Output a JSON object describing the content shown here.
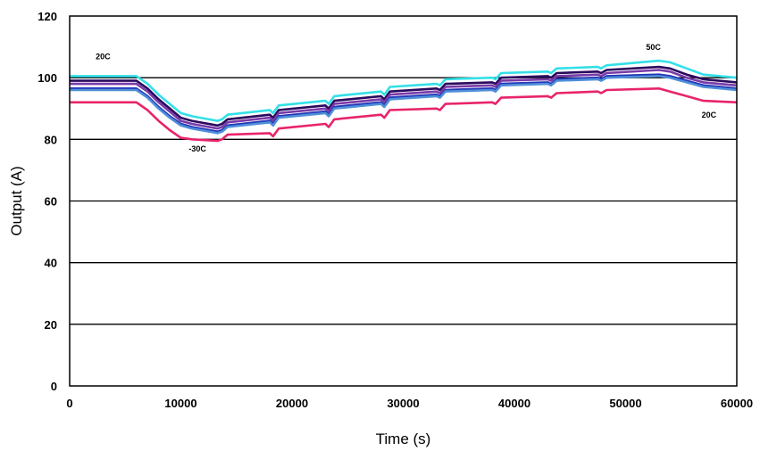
{
  "chart_data": {
    "type": "line",
    "title": "",
    "xlabel": "Time (s)",
    "ylabel": "Output (A)",
    "xlim": [
      0,
      60000
    ],
    "ylim": [
      0,
      120
    ],
    "xticks": [
      0,
      10000,
      20000,
      30000,
      40000,
      50000,
      60000
    ],
    "yticks": [
      0,
      20,
      40,
      60,
      80,
      100,
      120
    ],
    "grid": "horizontal",
    "legend": "none",
    "series": [
      {
        "color": "#33e0e8",
        "x": [
          0,
          6000,
          7000,
          8000,
          9000,
          10000,
          11000,
          13300,
          13700,
          14200,
          18000,
          18300,
          18800,
          23000,
          23300,
          23800,
          28000,
          28300,
          28800,
          33000,
          33300,
          33800,
          38000,
          38300,
          38800,
          43000,
          43300,
          43800,
          47500,
          47800,
          48300,
          53000,
          54000,
          55500,
          57000,
          60000
        ],
        "y": [
          100.5,
          100.5,
          98,
          94.5,
          91.5,
          88.5,
          87.5,
          86,
          86.5,
          88,
          89.5,
          88.5,
          91,
          92.5,
          91.5,
          94,
          95.5,
          94.5,
          97,
          98,
          97.5,
          99.5,
          100,
          99.5,
          101.5,
          102,
          101.5,
          103,
          103.5,
          103,
          104,
          105.5,
          105,
          103,
          101,
          100
        ]
      },
      {
        "color": "#2a0a5e",
        "x": [
          0,
          6000,
          7000,
          8000,
          9000,
          10000,
          11000,
          13300,
          13700,
          14200,
          18000,
          18300,
          18800,
          23000,
          23300,
          23800,
          28000,
          28300,
          28800,
          33000,
          33300,
          33800,
          38000,
          38300,
          38800,
          43000,
          43300,
          43800,
          47500,
          47800,
          48300,
          53000,
          54000,
          55500,
          57000,
          60000
        ],
        "y": [
          99,
          99,
          96.5,
          93,
          90,
          87,
          86,
          84.5,
          85,
          86.5,
          88,
          87,
          89.5,
          91,
          90,
          92.5,
          94,
          93,
          95.5,
          96.5,
          96,
          98,
          98.5,
          98,
          100,
          100.5,
          100,
          101.5,
          102,
          101.5,
          102.5,
          103.5,
          103,
          101,
          99.5,
          98.5
        ]
      },
      {
        "color": "#7a3aa8",
        "x": [
          0,
          6000,
          7000,
          8000,
          9000,
          10000,
          11000,
          13300,
          13700,
          14200,
          18000,
          18300,
          18800,
          23000,
          23300,
          23800,
          28000,
          28300,
          28800,
          33000,
          33300,
          33800,
          38000,
          38300,
          38800,
          43000,
          43300,
          43800,
          47500,
          47800,
          48300,
          53000,
          54000,
          55500,
          57000,
          60000
        ],
        "y": [
          98,
          98,
          95.5,
          92,
          89,
          86,
          85,
          83.5,
          84,
          85.5,
          87,
          86,
          88.5,
          90,
          89,
          91.5,
          93,
          92,
          94.5,
          95.5,
          95,
          97,
          97.5,
          97,
          99,
          99.5,
          99,
          100.5,
          101,
          100.5,
          101.5,
          102.5,
          102,
          100,
          98.5,
          97.5
        ]
      },
      {
        "color": "#2436b8",
        "x": [
          0,
          6000,
          7000,
          8000,
          9000,
          10000,
          11000,
          13300,
          13700,
          14200,
          18000,
          18300,
          18800,
          23000,
          23300,
          23800,
          28000,
          28300,
          28800,
          33000,
          33300,
          33800,
          38000,
          38300,
          38800,
          43000,
          43300,
          43800,
          47500,
          47800,
          48300,
          53000,
          54000,
          55500,
          57000,
          60000
        ],
        "y": [
          96.5,
          96.5,
          94,
          90.5,
          87.5,
          85,
          84,
          82.5,
          83,
          84.5,
          86,
          85,
          87.5,
          89,
          88,
          90.5,
          92,
          91,
          93.5,
          94.5,
          94,
          96,
          96.5,
          96,
          98,
          98.5,
          98,
          99.5,
          100,
          99.5,
          100.5,
          101,
          100.5,
          99,
          97.5,
          96.5
        ]
      },
      {
        "color": "#4f8fd8",
        "x": [
          0,
          6000,
          7000,
          8000,
          9000,
          10000,
          11000,
          13300,
          13700,
          14200,
          18000,
          18300,
          18800,
          23000,
          23300,
          23800,
          28000,
          28300,
          28800,
          33000,
          33300,
          33800,
          38000,
          38300,
          38800,
          43000,
          43300,
          43800,
          47500,
          47800,
          48300,
          53000,
          54000,
          55500,
          57000,
          60000
        ],
        "y": [
          96,
          96,
          93.5,
          90,
          87,
          84.5,
          83.5,
          82,
          82.5,
          84,
          85.5,
          84.5,
          87,
          88.5,
          87.5,
          90,
          91.5,
          90.5,
          93,
          94,
          93.5,
          95.5,
          96,
          95.5,
          97.5,
          98,
          97.5,
          99,
          99.5,
          99,
          100,
          100.5,
          100,
          98.5,
          97,
          96
        ]
      },
      {
        "color": "#e8246a",
        "x": [
          0,
          6000,
          7000,
          8000,
          9000,
          10000,
          11000,
          13300,
          13700,
          14200,
          18000,
          18300,
          18800,
          23000,
          23300,
          23800,
          28000,
          28300,
          28800,
          33000,
          33300,
          33800,
          38000,
          38300,
          38800,
          43000,
          43300,
          43800,
          47500,
          47800,
          48300,
          53000,
          54000,
          55500,
          57000,
          60000
        ],
        "y": [
          92,
          92,
          89.5,
          86,
          83,
          80.5,
          80,
          79.5,
          80,
          81.5,
          82,
          81,
          83.5,
          85,
          84,
          86.5,
          88,
          87,
          89.5,
          90,
          89.5,
          91.5,
          92,
          91.5,
          93.5,
          94,
          93.5,
          95,
          95.5,
          95,
          96,
          96.5,
          95.5,
          94,
          92.5,
          92
        ]
      }
    ],
    "annotations": [
      {
        "text": "20C",
        "x": 3000,
        "y": 106
      },
      {
        "text": "-30C",
        "x": 11500,
        "y": 76
      },
      {
        "text": "50C",
        "x": 52500,
        "y": 109
      },
      {
        "text": "20C",
        "x": 57500,
        "y": 87
      }
    ]
  }
}
